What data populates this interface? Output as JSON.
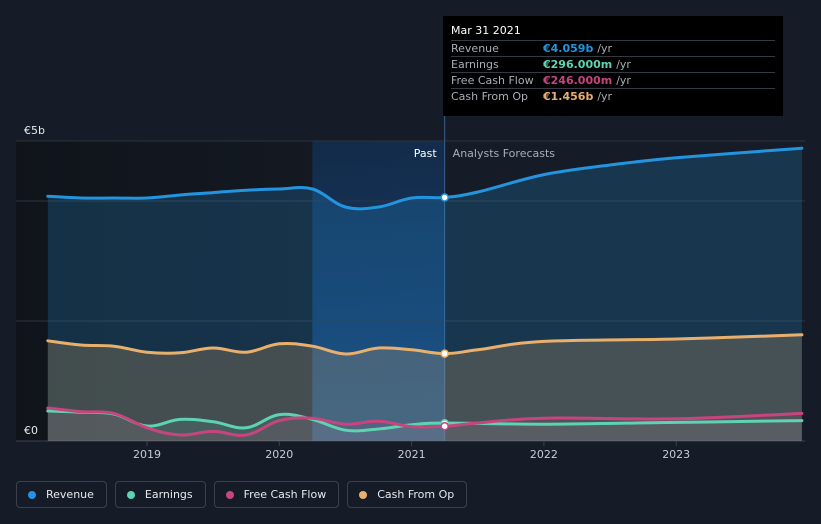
{
  "chart_data": {
    "type": "area",
    "title": "",
    "y_axis": {
      "min": 0,
      "max": 5,
      "unit": "€b",
      "labels": [
        {
          "value": 5,
          "text": "€5b"
        },
        {
          "value": 0,
          "text": "€0"
        }
      ]
    },
    "x_axis": {
      "min": 2018.25,
      "max": 2023.95,
      "ticks": [
        {
          "value": 2019,
          "label": "2019"
        },
        {
          "value": 2020,
          "label": "2020"
        },
        {
          "value": 2021,
          "label": "2021"
        },
        {
          "value": 2022,
          "label": "2022"
        },
        {
          "value": 2023,
          "label": "2023"
        }
      ]
    },
    "past_label": "Past",
    "forecast_label": "Analysts Forecasts",
    "divider_x": 2021.25,
    "highlight_band": [
      2020.25,
      2021.25
    ],
    "series": [
      {
        "name": "Revenue",
        "color": "#2394df",
        "points": [
          [
            2018.25,
            4.08
          ],
          [
            2018.5,
            4.05
          ],
          [
            2018.75,
            4.05
          ],
          [
            2019.0,
            4.05
          ],
          [
            2019.25,
            4.1
          ],
          [
            2019.5,
            4.14
          ],
          [
            2019.75,
            4.18
          ],
          [
            2020.0,
            4.2
          ],
          [
            2020.25,
            4.2
          ],
          [
            2020.5,
            3.9
          ],
          [
            2020.75,
            3.9
          ],
          [
            2021.0,
            4.05
          ],
          [
            2021.25,
            4.06
          ],
          [
            2021.5,
            4.15
          ],
          [
            2022.0,
            4.44
          ],
          [
            2022.5,
            4.6
          ],
          [
            2023.0,
            4.72
          ],
          [
            2023.95,
            4.88
          ]
        ]
      },
      {
        "name": "Earnings",
        "color": "#5ed3b2",
        "points": [
          [
            2018.25,
            0.5
          ],
          [
            2018.5,
            0.48
          ],
          [
            2018.75,
            0.45
          ],
          [
            2019.0,
            0.25
          ],
          [
            2019.25,
            0.36
          ],
          [
            2019.5,
            0.32
          ],
          [
            2019.75,
            0.22
          ],
          [
            2020.0,
            0.44
          ],
          [
            2020.25,
            0.36
          ],
          [
            2020.5,
            0.18
          ],
          [
            2020.75,
            0.2
          ],
          [
            2021.0,
            0.27
          ],
          [
            2021.25,
            0.3
          ],
          [
            2022.0,
            0.28
          ],
          [
            2023.0,
            0.31
          ],
          [
            2023.95,
            0.34
          ]
        ]
      },
      {
        "name": "Free Cash Flow",
        "color": "#c7457e",
        "points": [
          [
            2018.25,
            0.55
          ],
          [
            2018.5,
            0.49
          ],
          [
            2018.75,
            0.46
          ],
          [
            2019.0,
            0.22
          ],
          [
            2019.25,
            0.1
          ],
          [
            2019.5,
            0.16
          ],
          [
            2019.75,
            0.1
          ],
          [
            2020.0,
            0.34
          ],
          [
            2020.25,
            0.38
          ],
          [
            2020.5,
            0.28
          ],
          [
            2020.75,
            0.33
          ],
          [
            2021.0,
            0.24
          ],
          [
            2021.25,
            0.246
          ],
          [
            2021.5,
            0.3
          ],
          [
            2022.0,
            0.38
          ],
          [
            2023.0,
            0.37
          ],
          [
            2023.95,
            0.46
          ]
        ]
      },
      {
        "name": "Cash From Op",
        "color": "#e9b06d",
        "points": [
          [
            2018.25,
            1.67
          ],
          [
            2018.5,
            1.6
          ],
          [
            2018.75,
            1.58
          ],
          [
            2019.0,
            1.48
          ],
          [
            2019.25,
            1.47
          ],
          [
            2019.5,
            1.55
          ],
          [
            2019.75,
            1.48
          ],
          [
            2020.0,
            1.62
          ],
          [
            2020.25,
            1.58
          ],
          [
            2020.5,
            1.45
          ],
          [
            2020.75,
            1.55
          ],
          [
            2021.0,
            1.52
          ],
          [
            2021.25,
            1.456
          ],
          [
            2021.5,
            1.52
          ],
          [
            2022.0,
            1.66
          ],
          [
            2023.0,
            1.7
          ],
          [
            2023.95,
            1.77
          ]
        ]
      }
    ],
    "markers": [
      {
        "series": "Revenue",
        "x": 2021.25,
        "y": 4.059
      },
      {
        "series": "Cash From Op",
        "x": 2021.25,
        "y": 1.456
      },
      {
        "series": "Earnings",
        "x": 2021.25,
        "y": 0.296
      },
      {
        "series": "Free Cash Flow",
        "x": 2021.25,
        "y": 0.246
      }
    ]
  },
  "tooltip": {
    "date": "Mar 31 2021",
    "rows": [
      {
        "name": "Revenue",
        "value": "€4.059b",
        "unit": "/yr",
        "color": "#2394df"
      },
      {
        "name": "Earnings",
        "value": "€296.000m",
        "unit": "/yr",
        "color": "#5ed3b2"
      },
      {
        "name": "Free Cash Flow",
        "value": "€246.000m",
        "unit": "/yr",
        "color": "#c7457e"
      },
      {
        "name": "Cash From Op",
        "value": "€1.456b",
        "unit": "/yr",
        "color": "#e9b06d"
      }
    ]
  },
  "legend": [
    {
      "label": "Revenue",
      "color": "#2394df"
    },
    {
      "label": "Earnings",
      "color": "#5ed3b2"
    },
    {
      "label": "Free Cash Flow",
      "color": "#c7457e"
    },
    {
      "label": "Cash From Op",
      "color": "#e9b06d"
    }
  ]
}
